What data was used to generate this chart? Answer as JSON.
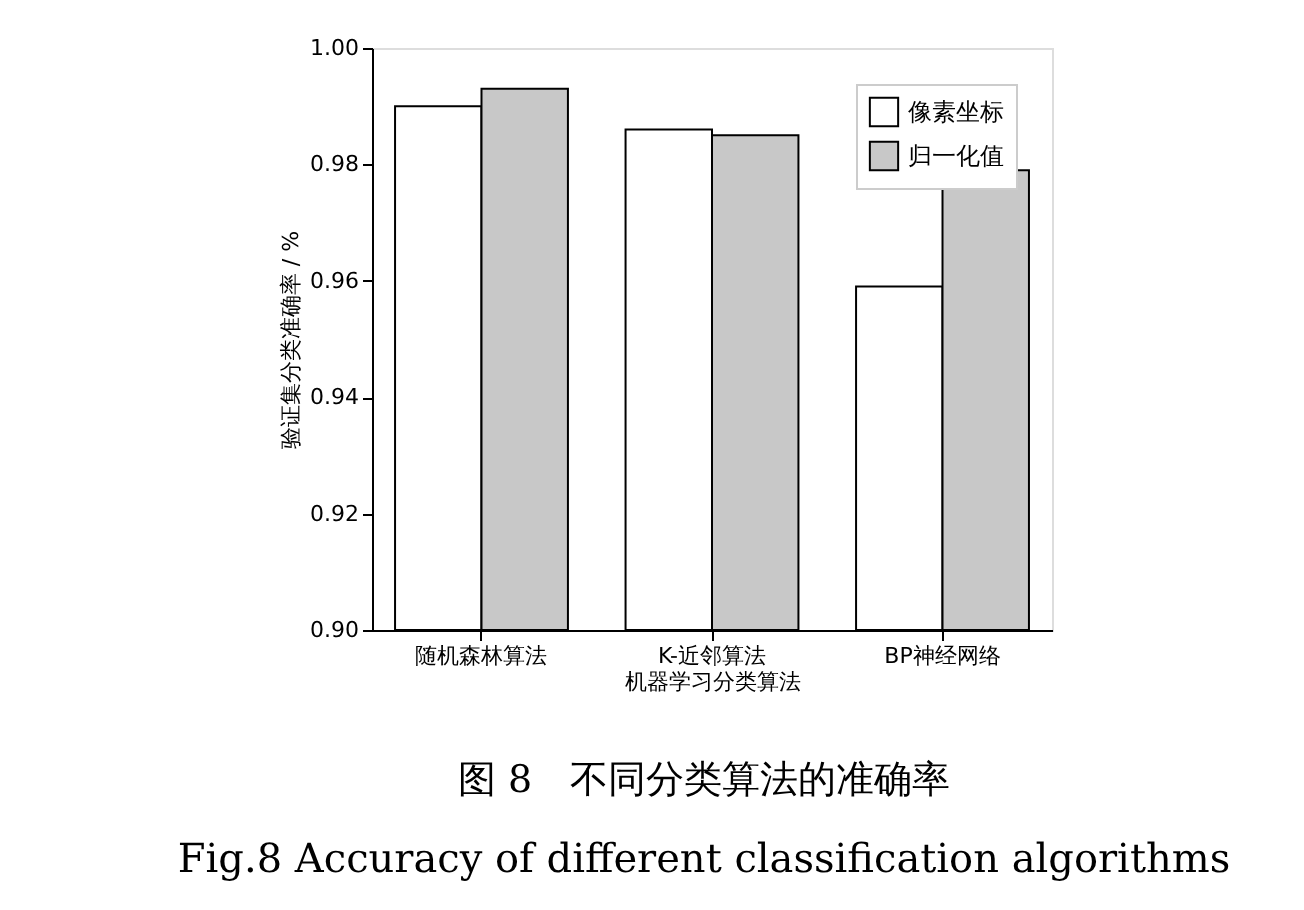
{
  "chart_data": {
    "type": "bar",
    "xlabel": "机器学习分类算法",
    "ylabel": "验证集分类准确率 / %",
    "categories": [
      "随机森林算法",
      "K-近邻算法",
      "BP神经网络"
    ],
    "series": [
      {
        "name": "像素坐标",
        "color": "#ffffff",
        "values": [
          0.99,
          0.986,
          0.959
        ]
      },
      {
        "name": "归一化值",
        "color": "#c8c8c8",
        "values": [
          0.993,
          0.985,
          0.979
        ]
      }
    ],
    "ylim": [
      0.9,
      1.0
    ],
    "yticks": [
      {
        "value": 0.9,
        "label": "0.90"
      },
      {
        "value": 0.92,
        "label": "0.92"
      },
      {
        "value": 0.94,
        "label": "0.94"
      },
      {
        "value": 0.96,
        "label": "0.96"
      },
      {
        "value": 0.98,
        "label": "0.98"
      },
      {
        "value": 1.0,
        "label": "1.00"
      }
    ],
    "grid": false,
    "legend": "top right",
    "annotations": [
      "图 8　不同分类算法的准确率",
      "Fig.8 Accuracy of different classification algorithms"
    ]
  }
}
